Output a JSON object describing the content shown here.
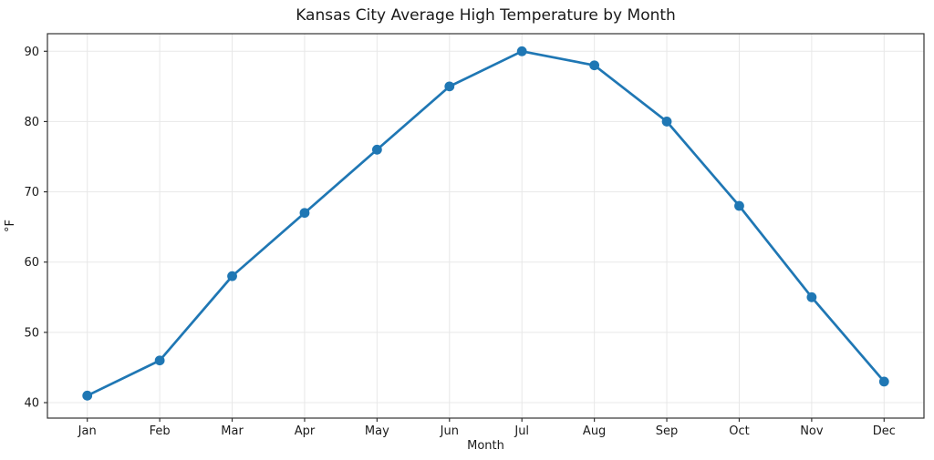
{
  "chart_data": {
    "type": "line",
    "title": "Kansas City Average High Temperature by Month",
    "xlabel": "Month",
    "ylabel": "°F",
    "categories": [
      "Jan",
      "Feb",
      "Mar",
      "Apr",
      "May",
      "Jun",
      "Jul",
      "Aug",
      "Sep",
      "Oct",
      "Nov",
      "Dec"
    ],
    "series": [
      {
        "name": "Average High Temperature",
        "values": [
          41,
          46,
          58,
          67,
          76,
          85,
          90,
          88,
          80,
          68,
          55,
          43
        ]
      }
    ],
    "yticks": [
      40,
      50,
      60,
      70,
      80,
      90
    ],
    "ylim": [
      37.8,
      92.5
    ],
    "grid": true,
    "legend_position": "none",
    "line_color": "#1f77b4",
    "marker": "circle",
    "grid_color": "#e8e8e8",
    "spine_color": "#333333",
    "text_color": "#1a1a1a"
  }
}
